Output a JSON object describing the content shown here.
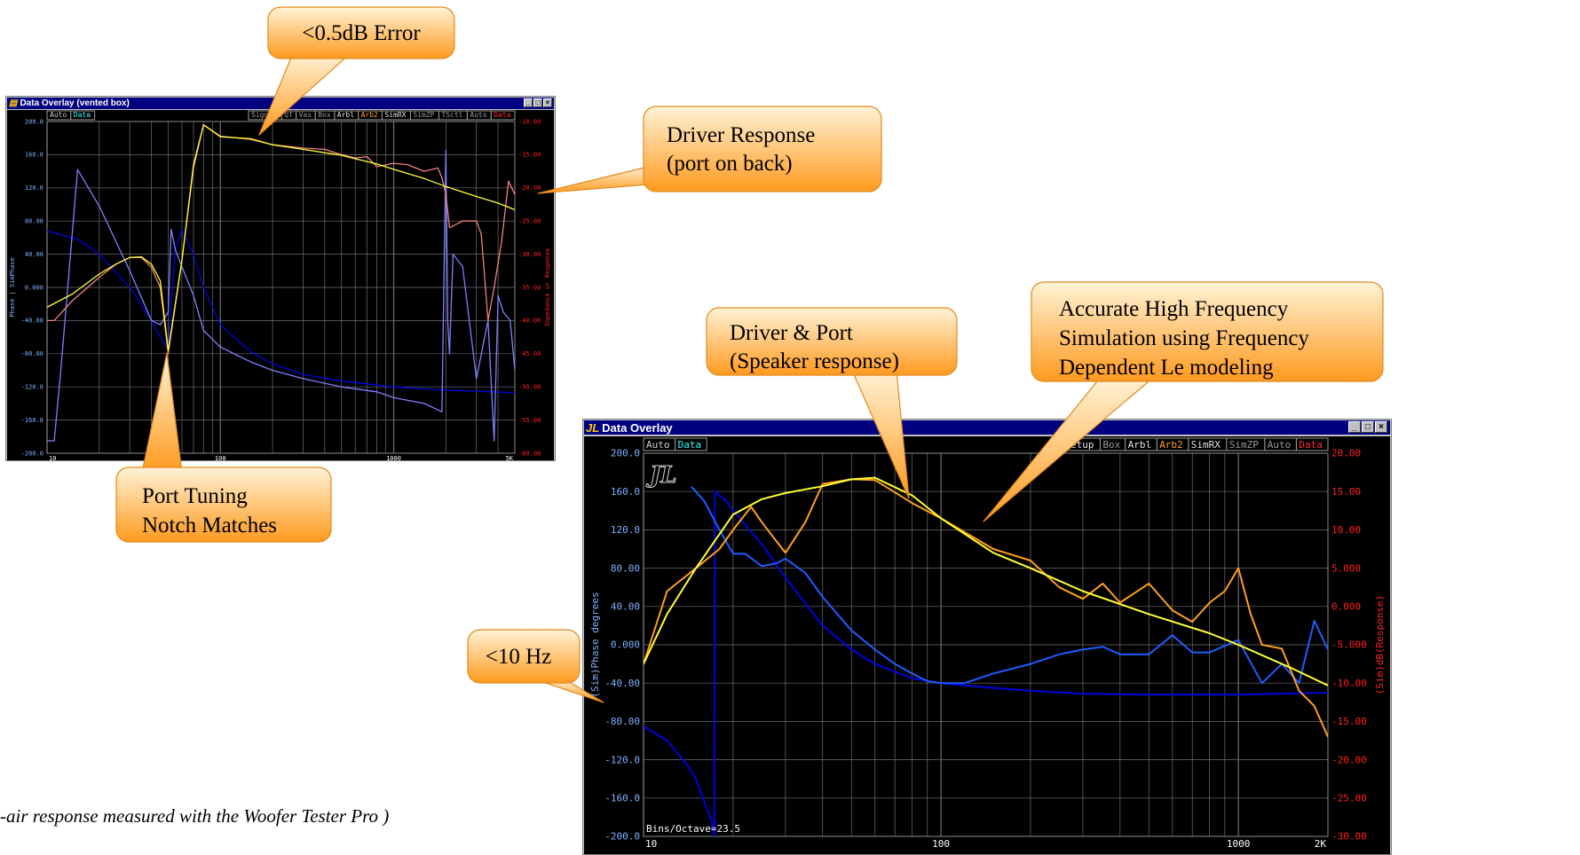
{
  "caption": "-air response measured with the Woofer Tester Pro )",
  "callouts": {
    "error": [
      "<0.5dB Error"
    ],
    "driver_response": [
      "Driver Response",
      "(port on back)"
    ],
    "port_tuning": [
      "Port Tuning",
      "Notch Matches"
    ],
    "driver_port": [
      "Driver & Port",
      "(Speaker response)"
    ],
    "high_freq": [
      "Accurate High Frequency",
      "Simulation using Frequency",
      "Dependent Le modeling"
    ],
    "ten_hz": [
      "<10 Hz"
    ]
  },
  "colors": {
    "callout_light": "#fff3d6",
    "callout_dark": "#ff9a1f",
    "callout_border": "#e08a20",
    "sim_yellow": "#ffff33",
    "measured_pink": "#f08080",
    "measured_orange": "#ffa020",
    "phase_light": "#8080ff",
    "phase_blue": "#1e5cff",
    "sim_phase": "#0000e0",
    "grid": "#6f6f6f",
    "left_axis_text": "#7fb0ff",
    "right_axis_text": "#ff2020"
  },
  "window1": {
    "title": "Data Overlay (vented box)",
    "buttons": [
      "_",
      "□",
      "×"
    ],
    "left_tabs": [
      "Auto",
      "Data"
    ],
    "right_tabs": [
      "Signal",
      "QT",
      "Vas",
      "Box",
      "Arbl",
      "Arb2",
      "SimRX",
      "SimZP",
      "TSctl",
      "Auto",
      "Data"
    ],
    "left_axis_label": "Phase | SimPhase",
    "right_axis_label": "Impedance or Response",
    "left_ticks": [
      "200.0",
      "160.0",
      "120.0",
      "80.00",
      "40.00",
      "0.000",
      "-40.00",
      "-80.00",
      "-120.0",
      "-160.0",
      "-200.0"
    ],
    "right_ticks": [
      "-10.00",
      "-15.00",
      "-20.00",
      "-25.00",
      "-30.00",
      "-35.00",
      "-40.00",
      "-45.00",
      "-50.00",
      "-55.00",
      "-60.00"
    ],
    "x_ticks": [
      "10",
      "100",
      "1000",
      "5K"
    ]
  },
  "window2": {
    "title": "Data Overlay",
    "buttons": [
      "_",
      "□",
      "×"
    ],
    "left_tabs": [
      "Auto",
      "Data"
    ],
    "right_tabs": [
      "Setup",
      "Box",
      "Arbl",
      "Arb2",
      "SimRX",
      "SimZP",
      "Auto",
      "Data"
    ],
    "logo": "JL",
    "bins_label": "Bins/Octave=23.5",
    "left_axis_label": "(Sim)Phase degrees",
    "right_axis_label": "(Sim)dB(Response)",
    "left_ticks": [
      "200.0",
      "160.0",
      "120.0",
      "80.00",
      "40.00",
      "0.000",
      "-40.00",
      "-80.00",
      "-120.0",
      "-160.0",
      "-200.0"
    ],
    "right_ticks": [
      "20.00",
      "15.00",
      "10.00",
      "5.000",
      "0.000",
      "-5.000",
      "-10.00",
      "-15.00",
      "-20.00",
      "-25.00",
      "-30.00"
    ],
    "x_ticks": [
      "10",
      "100",
      "1000",
      "2K"
    ]
  },
  "chart_data": [
    {
      "type": "line",
      "x_scale": "log",
      "xlim": [
        10,
        5000
      ],
      "y_left_lim": [
        -200,
        200
      ],
      "y_right_lim": [
        -60,
        -10
      ],
      "grid": true,
      "series": [
        {
          "axis": "right",
          "role": "sim_response",
          "color": "#ffff33",
          "x": [
            10,
            14,
            20,
            25,
            30,
            35,
            40,
            45,
            50,
            60,
            70,
            80,
            100,
            150,
            200,
            300,
            500,
            800,
            1000,
            1500,
            2000,
            3000,
            4000,
            5000
          ],
          "y": [
            -38,
            -36,
            -33,
            -31.5,
            -30.5,
            -30.4,
            -31.5,
            -34,
            -44.5,
            -31,
            -16.5,
            -10.5,
            -12.3,
            -12.6,
            -13.5,
            -14.2,
            -15.1,
            -16.4,
            -17.2,
            -18.6,
            -19.8,
            -21.3,
            -22.3,
            -23.3
          ]
        },
        {
          "axis": "right",
          "role": "measured_response",
          "color": "#f08080",
          "x": [
            10,
            11,
            14,
            20,
            25,
            30,
            35,
            40,
            45,
            50,
            60,
            70,
            80,
            100,
            150,
            200,
            300,
            400,
            500,
            600,
            700,
            800,
            1000,
            1200,
            1500,
            1800,
            1900,
            2000,
            2100,
            2500,
            3000,
            3200,
            3500,
            3800,
            4200,
            4600,
            5000
          ],
          "y": [
            -40,
            -40,
            -37,
            -33.5,
            -31.5,
            -30.5,
            -30.5,
            -32,
            -35,
            -45,
            -31,
            -17,
            -10.5,
            -12.2,
            -12.7,
            -13.5,
            -14,
            -14.2,
            -15,
            -15.5,
            -15.3,
            -16.8,
            -16.3,
            -16.5,
            -17.5,
            -17,
            -18.5,
            -21,
            -26,
            -25,
            -25,
            -27,
            -40,
            -35,
            -28,
            -19,
            -21
          ]
        },
        {
          "axis": "left",
          "role": "measured_phase",
          "color": "#8080ff",
          "x": [
            10,
            11,
            12,
            15,
            20,
            30,
            40,
            45,
            50,
            52,
            55,
            60,
            70,
            80,
            100,
            150,
            200,
            300,
            500,
            800,
            1000,
            1500,
            1900,
            2000,
            2050,
            2100,
            2200,
            2500,
            3000,
            3500,
            3800,
            4000,
            4300,
            4700,
            5000
          ],
          "y": [
            -185,
            -185,
            -100,
            142,
            98,
            20,
            -40,
            -45,
            -30,
            70,
            45,
            25,
            -10,
            -52,
            -72,
            -90,
            -100,
            -110,
            -120,
            -126,
            -133,
            -140,
            -150,
            165,
            -40,
            -80,
            40,
            25,
            -110,
            -40,
            -185,
            -10,
            -30,
            -40,
            -100
          ]
        },
        {
          "axis": "left",
          "role": "sim_phase",
          "color": "#0000e0",
          "x": [
            10,
            15,
            20,
            30,
            40,
            45,
            50,
            52,
            55,
            60,
            70,
            80,
            100,
            150,
            200,
            300,
            500,
            1000,
            2000,
            5000
          ],
          "y": [
            68,
            58,
            40,
            0,
            -40,
            -60,
            -75,
            -20,
            45,
            70,
            40,
            0,
            -45,
            -78,
            -92,
            -105,
            -113,
            -120,
            -124,
            -127
          ]
        }
      ]
    },
    {
      "type": "line",
      "x_scale": "log",
      "xlim": [
        10,
        2000
      ],
      "y_left_lim": [
        -200,
        200
      ],
      "y_right_lim": [
        -30,
        20
      ],
      "grid": true,
      "series": [
        {
          "axis": "right",
          "role": "sim_response",
          "color": "#ffff33",
          "x": [
            10,
            12,
            15,
            20,
            25,
            30,
            40,
            50,
            60,
            80,
            100,
            150,
            200,
            300,
            500,
            800,
            1000,
            1500,
            2000
          ],
          "y": [
            -7.5,
            -1,
            5,
            12,
            14,
            14.8,
            15.7,
            16.6,
            16.8,
            14.5,
            11.5,
            7,
            5,
            2,
            -1,
            -3.5,
            -5,
            -8,
            -10.3
          ]
        },
        {
          "axis": "right",
          "role": "measured_response",
          "color": "#ffa020",
          "x": [
            10,
            12,
            15,
            18,
            20,
            23,
            25,
            28,
            30,
            35,
            40,
            50,
            60,
            80,
            100,
            150,
            200,
            250,
            300,
            350,
            400,
            500,
            600,
            700,
            800,
            900,
            1000,
            1100,
            1200,
            1400,
            1600,
            1800,
            2000
          ],
          "y": [
            -7.5,
            2,
            5,
            7.5,
            10,
            13,
            11,
            8.5,
            7,
            11,
            16,
            16.6,
            16.5,
            13.5,
            11.5,
            7.5,
            6,
            2.5,
            1,
            3,
            0.5,
            3,
            -0.5,
            -2,
            0.5,
            2,
            5,
            -1,
            -5,
            -5.5,
            -11,
            -13,
            -17
          ]
        },
        {
          "axis": "left",
          "role": "sim_phase",
          "color": "#0000e0",
          "x": [
            10,
            12,
            14,
            15,
            17,
            17.3,
            17.35,
            19,
            20,
            25,
            30,
            40,
            50,
            60,
            80,
            100,
            150,
            200,
            300,
            500,
            1000,
            2000
          ],
          "y": [
            -85,
            -100,
            -125,
            -140,
            -185,
            -200,
            160,
            150,
            140,
            105,
            70,
            20,
            -5,
            -20,
            -35,
            -40,
            -45,
            -48,
            -51,
            -52,
            -52,
            -50
          ]
        },
        {
          "axis": "left",
          "role": "measured_phase",
          "color": "#1e5cff",
          "x": [
            14.5,
            16,
            18,
            20,
            22,
            25,
            28,
            30,
            35,
            40,
            50,
            60,
            70,
            80,
            90,
            100,
            120,
            150,
            200,
            250,
            300,
            350,
            400,
            500,
            600,
            700,
            800,
            1000,
            1200,
            1400,
            1600,
            1800,
            2000
          ],
          "y": [
            165,
            150,
            120,
            95,
            95,
            82,
            85,
            90,
            75,
            50,
            15,
            -5,
            -20,
            -30,
            -38,
            -40,
            -40,
            -30,
            -20,
            -10,
            -5,
            -2,
            -10,
            -10,
            10,
            -8,
            -8,
            5,
            -40,
            -20,
            -40,
            25,
            -5
          ]
        }
      ]
    }
  ]
}
